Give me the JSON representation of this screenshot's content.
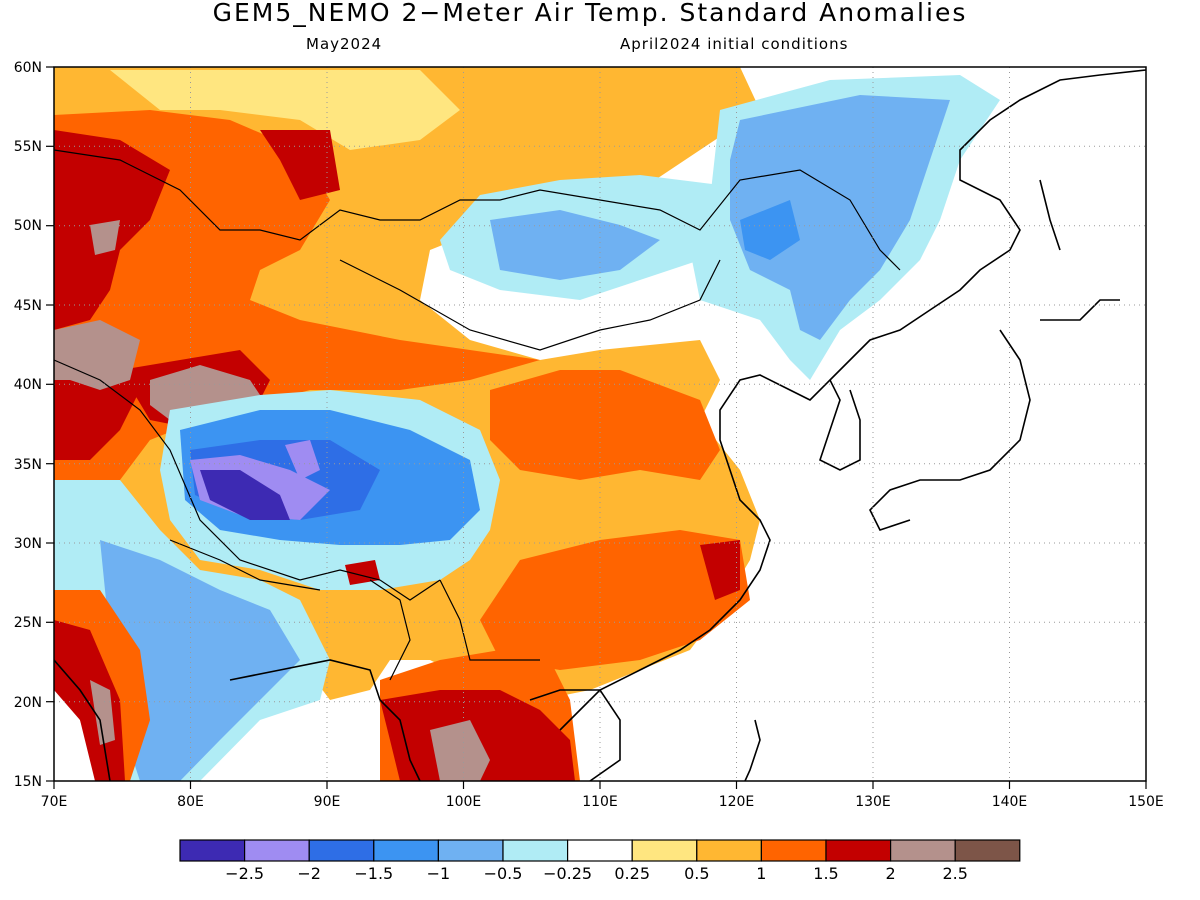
{
  "title": "GEM5_NEMO 2−Meter Air Temp. Standard Anomalies",
  "subtitle_left": "May2024",
  "subtitle_right": "April2024 initial conditions",
  "map": {
    "lon_range": [
      70,
      150
    ],
    "lat_range": [
      15,
      60
    ],
    "lat_ticks": [
      "60N",
      "55N",
      "50N",
      "45N",
      "40N",
      "35N",
      "30N",
      "25N",
      "20N",
      "15N"
    ],
    "lon_ticks": [
      "70E",
      "80E",
      "90E",
      "100E",
      "110E",
      "120E",
      "130E",
      "140E",
      "150E"
    ],
    "grid": true,
    "grid_style": "dotted",
    "land_outline_color": "#000000",
    "anomaly_regions": [
      {
        "region": "Western Siberia / Kazakhstan",
        "level": "1.5 to 2"
      },
      {
        "region": "Central Asia (near 75E, 40N)",
        "level": "> 2"
      },
      {
        "region": "Mongolia",
        "level": "-1 to -0.5"
      },
      {
        "region": "Tibetan Plateau",
        "level": "-2.5 to -1"
      },
      {
        "region": "Northeast China / Russian Far East",
        "level": "-1 to -0.5"
      },
      {
        "region": "Central and South China",
        "level": "0.5 to 1.5"
      },
      {
        "region": "Indochina",
        "level": "1.5 to 2.5"
      },
      {
        "region": "India",
        "level": "-1 to -0.25"
      }
    ]
  },
  "colorbar": {
    "colors": [
      "#3d2ab3",
      "#9f8cf2",
      "#2e6ee6",
      "#3c94f2",
      "#6fb1f2",
      "#b0ecf5",
      "#ffffff",
      "#ffe680",
      "#ffb732",
      "#ff6400",
      "#c30000",
      "#b4918c",
      "#7d5548"
    ],
    "labels": [
      "−2.5",
      "−2",
      "−1.5",
      "−1",
      "−0.5",
      "−0.25",
      "0.25",
      "0.5",
      "1",
      "1.5",
      "2",
      "2.5"
    ]
  }
}
